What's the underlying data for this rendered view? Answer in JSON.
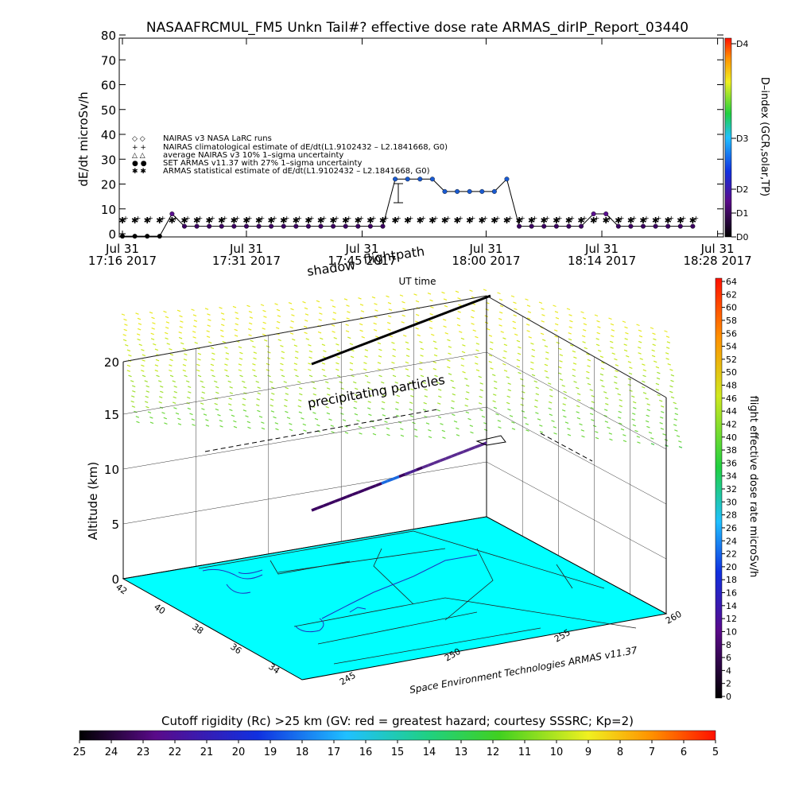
{
  "title": "NASAAFRCMUL_FM5 Unkn Tail#? effective dose rate ARMAS_dirIP_Report_03440",
  "chart_data": [
    {
      "type": "line",
      "ylabel": "dE/dt microSv/h",
      "xlabel": "UT time",
      "ylim": [
        0,
        80
      ],
      "y_ticks": [
        "0",
        "10",
        "20",
        "30",
        "40",
        "50",
        "60",
        "70",
        "80"
      ],
      "x_ticks": [
        {
          "line1": "Jul 31",
          "line2": "17:16 2017",
          "t": 0
        },
        {
          "line1": "Jul 31",
          "line2": "17:31 2017",
          "t": 15
        },
        {
          "line1": "Jul 31",
          "line2": "17:45 2017",
          "t": 29
        },
        {
          "line1": "Jul 31",
          "line2": "18:00 2017",
          "t": 44
        },
        {
          "line1": "Jul 31",
          "line2": "18:14 2017",
          "t": 58
        },
        {
          "line1": "Jul 31",
          "line2": "18:28 2017",
          "t": 72
        }
      ],
      "legend": [
        {
          "symbol": "◇ ◇",
          "text": "NAIRAS v3 NASA LaRC runs"
        },
        {
          "symbol": "+ +",
          "text": "NAIRAS climatological estimate of dE/dt(L1.9102432 – L2.1841668, G0)"
        },
        {
          "symbol": "△ △",
          "text": "average NAIRAS v3 10% 1–sigma uncertainty"
        },
        {
          "symbol": "● ●",
          "text": "SET ARMAS v11.37 with 27% 1–sigma uncertainty"
        },
        {
          "symbol": "✱ ✱",
          "text": "ARMAS statistical estimate of dE/dt(L1.9102432 – L2.1841668, G0)"
        }
      ],
      "series": [
        {
          "name": "SET ARMAS v11.37 with 27% 1–sigma uncertainty",
          "x": [
            0,
            1.5,
            3,
            4.5,
            6,
            7.5,
            9,
            10.5,
            12,
            13.5,
            15,
            16.5,
            18,
            19.5,
            21,
            22.5,
            24,
            25.5,
            27,
            28.5,
            30,
            31.5,
            33,
            34.5,
            36,
            37.5,
            39,
            40.5,
            42,
            43.5,
            45,
            46.5,
            48,
            49.5,
            51,
            52.5,
            54,
            55.5,
            57,
            58.5,
            60,
            61.5,
            63,
            64.5,
            66,
            67.5,
            69
          ],
          "y": [
            -1,
            -1,
            -1,
            -1,
            8,
            3,
            3,
            3,
            3,
            3,
            3,
            3,
            3,
            3,
            3,
            3,
            3,
            3,
            3,
            3,
            3,
            3,
            22,
            22,
            22,
            22,
            17,
            17,
            17,
            17,
            17,
            22,
            3,
            3,
            3,
            3,
            3,
            3,
            8,
            8,
            3,
            3,
            3,
            3,
            3,
            3,
            3
          ]
        },
        {
          "name": "ARMAS statistical estimate of dE/dt(L1.9102432 – L2.1841668, G0)",
          "constant": 5.5
        }
      ],
      "colorbar": {
        "label": "D–index (GCR,solar,TP)",
        "ticks": [
          "D0",
          "D1",
          "D2",
          "D3",
          "D4"
        ]
      }
    },
    {
      "type": "scatter",
      "ylabel": "Altitude (km)",
      "zlim": [
        0,
        20
      ],
      "z_ticks": [
        "0",
        "5",
        "10",
        "15",
        "20"
      ],
      "lat_ticks": [
        "42",
        "40",
        "38",
        "36",
        "34"
      ],
      "lon_ticks": [
        "245",
        "250",
        "255",
        "260"
      ],
      "annotations": {
        "shadow": "shadow",
        "flightpath": "flightpath",
        "precip": "precipitating particles",
        "credit": "Space Environment Technologies ARMAS v11.37"
      },
      "colorbar": {
        "label": "flight effective dose rate microSv/h",
        "ticks": [
          "0",
          "2",
          "4",
          "6",
          "8",
          "10",
          "12",
          "14",
          "16",
          "18",
          "20",
          "22",
          "24",
          "26",
          "28",
          "30",
          "32",
          "34",
          "36",
          "38",
          "40",
          "42",
          "44",
          "46",
          "48",
          "50",
          "52",
          "54",
          "56",
          "58",
          "60",
          "62",
          "64"
        ]
      }
    }
  ],
  "cutoff_bar": {
    "title": "Cutoff rigidity (Rc) >25 km (GV: red = greatest hazard; courtesy SSSRC; Kp=2)",
    "ticks": [
      "25",
      "24",
      "23",
      "22",
      "21",
      "20",
      "19",
      "18",
      "17",
      "16",
      "15",
      "14",
      "13",
      "12",
      "11",
      "10",
      "9",
      "8",
      "7",
      "6",
      "5"
    ]
  }
}
